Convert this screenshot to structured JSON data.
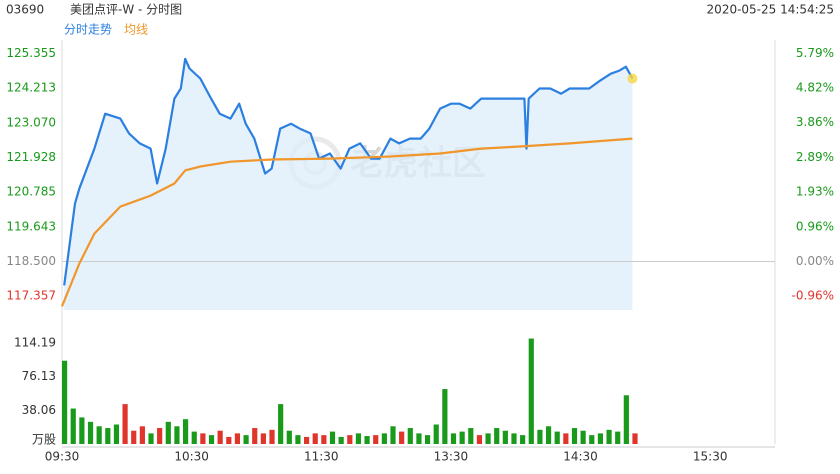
{
  "chart_data": {
    "type": "line",
    "code": "03690",
    "title": "美团点评-W - 分时图",
    "timestamp": "2020-05-25 14:54:25",
    "watermark": "老虎社区",
    "xlim": [
      0,
      330
    ],
    "xticks": [
      {
        "value": 0,
        "label": "09:30"
      },
      {
        "value": 60,
        "label": "10:30"
      },
      {
        "value": 120,
        "label": "11:30"
      },
      {
        "value": 180,
        "label": "13:30"
      },
      {
        "value": 240,
        "label": "14:30"
      },
      {
        "value": 300,
        "label": "15:30"
      }
    ],
    "ylim": [
      116.9,
      125.8
    ],
    "yticks": [
      125.355,
      124.213,
      {
        "value": 123.07,
        "label": "123.070"
      },
      121.928,
      120.785,
      119.643,
      {
        "value": 118.5,
        "label": "118.500"
      },
      117.357
    ],
    "y2lim": [
      -1.35,
      6.16
    ],
    "y2ticks": [
      {
        "value": 5.79,
        "label": "5.79%"
      },
      {
        "value": 4.82,
        "label": "4.82%"
      },
      {
        "value": 3.86,
        "label": "3.86%"
      },
      {
        "value": 2.89,
        "label": "2.89%"
      },
      {
        "value": 1.93,
        "label": "1.93%"
      },
      {
        "value": 0.96,
        "label": "0.96%"
      },
      {
        "value": 0,
        "label": "0.00%"
      },
      {
        "value": -0.96,
        "label": "-0.96%"
      }
    ],
    "up_color": "#1a9a1a",
    "down_color": "#e0352b",
    "flat_color": "#888888",
    "series": [
      {
        "name": "分时走势",
        "color": "#2b7fe0",
        "fill": "#dcedfb",
        "x": [
          1,
          6,
          8,
          15,
          20,
          27,
          31,
          36,
          41,
          44,
          48,
          52,
          55,
          57,
          59,
          64,
          69,
          73,
          78,
          82,
          85,
          89,
          94,
          97,
          101,
          106,
          110,
          115,
          119,
          124,
          129,
          133,
          138,
          143,
          147,
          152,
          156,
          161,
          166,
          170,
          175,
          180,
          184,
          189,
          194,
          198,
          203,
          207,
          212,
          214,
          215,
          216,
          221,
          226,
          231,
          235,
          240,
          244,
          249,
          254,
          258,
          261,
          264
        ],
        "values": [
          117.71,
          120.41,
          120.9,
          122.22,
          123.37,
          123.21,
          122.72,
          122.39,
          122.22,
          121.07,
          122.22,
          123.87,
          124.2,
          125.18,
          124.86,
          124.53,
          123.87,
          123.37,
          123.21,
          123.7,
          123.04,
          122.55,
          121.4,
          121.56,
          122.88,
          123.04,
          122.88,
          122.72,
          121.89,
          122.06,
          121.56,
          122.22,
          122.39,
          121.89,
          121.89,
          122.55,
          122.39,
          122.55,
          122.55,
          122.88,
          123.54,
          123.7,
          123.7,
          123.54,
          123.87,
          123.87,
          123.87,
          123.87,
          123.87,
          123.87,
          122.22,
          123.87,
          124.2,
          124.2,
          124.03,
          124.2,
          124.2,
          124.2,
          124.46,
          124.69,
          124.79,
          124.92,
          124.53
        ]
      },
      {
        "name": "均线",
        "color": "#f0962a",
        "x": [
          0,
          8,
          15,
          27,
          41,
          52,
          57,
          64,
          78,
          97,
          124,
          152,
          175,
          194,
          212,
          235,
          264
        ],
        "values": [
          117.02,
          118.43,
          119.42,
          120.31,
          120.67,
          121.07,
          121.5,
          121.63,
          121.79,
          121.86,
          121.89,
          121.96,
          122.06,
          122.22,
          122.29,
          122.39,
          122.55
        ]
      }
    ],
    "volume": {
      "ylim": [
        0,
        123
      ],
      "yticks": [
        114.19,
        76.13,
        38.06,
        {
          "value": 0,
          "label": "万股"
        }
      ],
      "x": [
        0,
        4,
        8,
        12,
        16,
        20,
        24,
        28,
        32,
        36,
        40,
        44,
        48,
        52,
        56,
        60,
        64,
        68,
        72,
        76,
        80,
        84,
        88,
        92,
        96,
        100,
        104,
        108,
        112,
        116,
        120,
        124,
        128,
        132,
        136,
        140,
        144,
        148,
        152,
        156,
        160,
        164,
        168,
        172,
        176,
        180,
        184,
        188,
        192,
        196,
        200,
        204,
        208,
        212,
        216,
        220,
        224,
        228,
        232,
        236,
        240,
        244,
        248,
        252,
        256,
        260,
        264
      ],
      "values": [
        94,
        40,
        30,
        25,
        20,
        18,
        22,
        45,
        15,
        20,
        12,
        18,
        25,
        20,
        28,
        14,
        12,
        10,
        15,
        8,
        12,
        10,
        18,
        12,
        16,
        45,
        15,
        10,
        8,
        12,
        10,
        14,
        8,
        10,
        12,
        9,
        10,
        12,
        20,
        14,
        18,
        12,
        10,
        22,
        62,
        12,
        14,
        18,
        10,
        12,
        18,
        15,
        12,
        10,
        119,
        16,
        20,
        14,
        12,
        18,
        15,
        10,
        12,
        16,
        14,
        55,
        12
      ]
    }
  }
}
